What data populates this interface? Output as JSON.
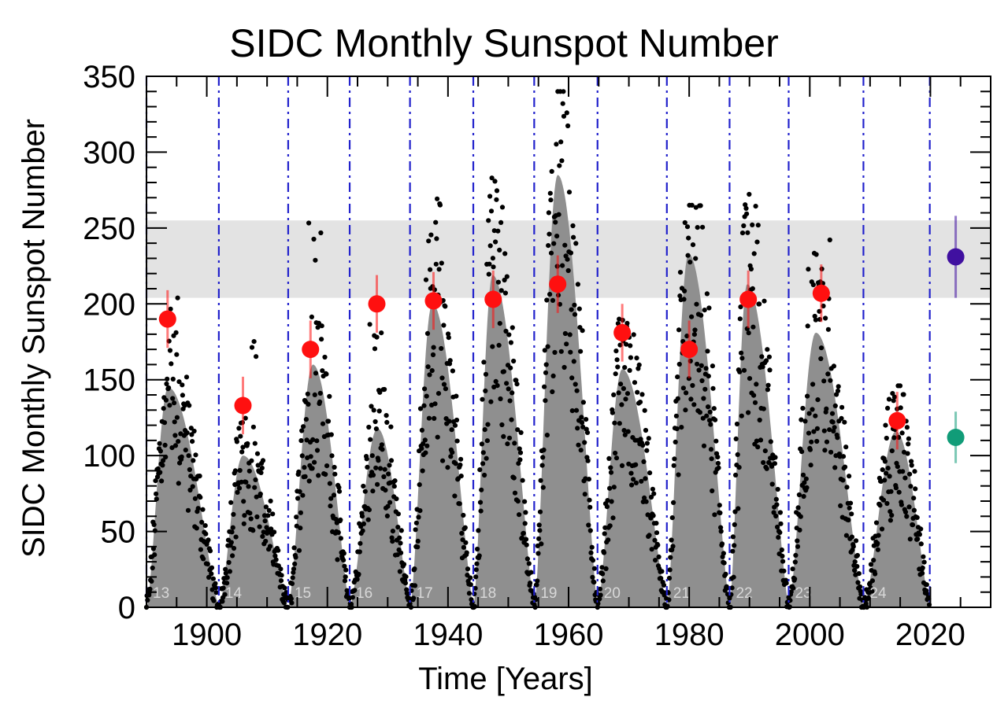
{
  "chart_data": {
    "type": "scatter",
    "title": "SIDC Monthly Sunspot Number",
    "xlabel": "Time [Years]",
    "ylabel": "SIDC Monthly Sunspot Number",
    "xlim": [
      1890,
      2030
    ],
    "ylim": [
      0,
      350
    ],
    "x_ticks": [
      1900,
      1920,
      1940,
      1960,
      1980,
      2000,
      2020
    ],
    "y_ticks": [
      0,
      50,
      100,
      150,
      200,
      250,
      300,
      350
    ],
    "grid": false,
    "shaded_band": {
      "y_from": 204,
      "y_to": 255,
      "color": "#e3e3e3"
    },
    "cycle_boundaries": [
      1890.0,
      1902.0,
      1913.5,
      1923.7,
      1933.7,
      1944.2,
      1954.3,
      1964.8,
      1976.3,
      1986.7,
      1996.5,
      2008.9,
      2019.9
    ],
    "cycles": [
      {
        "label": "13",
        "start": 1890.0,
        "peak": 1893.6,
        "end": 1902.0,
        "smoothed_max": 145,
        "monthly_max": 214
      },
      {
        "label": "14",
        "start": 1902.0,
        "peak": 1906.0,
        "end": 1913.5,
        "smoothed_max": 100,
        "monthly_max": 180
      },
      {
        "label": "15",
        "start": 1913.5,
        "peak": 1917.6,
        "end": 1923.7,
        "smoothed_max": 160,
        "monthly_max": 257
      },
      {
        "label": "16",
        "start": 1923.7,
        "peak": 1928.3,
        "end": 1933.7,
        "smoothed_max": 118,
        "monthly_max": 190
      },
      {
        "label": "17",
        "start": 1933.7,
        "peak": 1937.4,
        "end": 1944.2,
        "smoothed_max": 200,
        "monthly_max": 275
      },
      {
        "label": "18",
        "start": 1944.2,
        "peak": 1947.4,
        "end": 1954.3,
        "smoothed_max": 219,
        "monthly_max": 283
      },
      {
        "label": "19",
        "start": 1954.3,
        "peak": 1958.2,
        "end": 1964.8,
        "smoothed_max": 285,
        "monthly_max": 340
      },
      {
        "label": "20",
        "start": 1964.8,
        "peak": 1968.9,
        "end": 1976.3,
        "smoothed_max": 157,
        "monthly_max": 190
      },
      {
        "label": "21",
        "start": 1976.3,
        "peak": 1979.9,
        "end": 1986.7,
        "smoothed_max": 233,
        "monthly_max": 265
      },
      {
        "label": "22",
        "start": 1986.7,
        "peak": 1989.6,
        "end": 1996.5,
        "smoothed_max": 213,
        "monthly_max": 284
      },
      {
        "label": "23",
        "start": 1996.5,
        "peak": 2001.0,
        "end": 2008.9,
        "smoothed_max": 181,
        "monthly_max": 244
      },
      {
        "label": "24",
        "start": 2008.9,
        "peak": 2014.3,
        "end": 2019.9,
        "smoothed_max": 116,
        "monthly_max": 146
      }
    ],
    "monthly_data_color": "#000000",
    "smoothed_fill_color": "#8f8f8f",
    "boundary_color": "#2222cc",
    "series": [
      {
        "color": "#ff1010",
        "points": [
          {
            "x": 1893.5,
            "y": 190,
            "err": 19
          },
          {
            "x": 1906.0,
            "y": 133,
            "err": 19
          },
          {
            "x": 1917.2,
            "y": 170,
            "err": 19
          },
          {
            "x": 1928.2,
            "y": 200,
            "err": 19
          },
          {
            "x": 1937.6,
            "y": 202,
            "err": 19
          },
          {
            "x": 1947.5,
            "y": 203,
            "err": 19
          },
          {
            "x": 1958.2,
            "y": 213,
            "err": 19
          },
          {
            "x": 1968.9,
            "y": 181,
            "err": 19
          },
          {
            "x": 1980.0,
            "y": 170,
            "err": 19
          },
          {
            "x": 1989.8,
            "y": 203,
            "err": 19
          },
          {
            "x": 2001.9,
            "y": 207,
            "err": 19
          },
          {
            "x": 2014.5,
            "y": 123,
            "err": 19
          }
        ]
      },
      {
        "color": "#4010a0",
        "points": [
          {
            "x": 2024.2,
            "y": 231,
            "err": 27
          }
        ]
      },
      {
        "color": "#119c78",
        "points": [
          {
            "x": 2024.2,
            "y": 112,
            "err": 17
          }
        ]
      }
    ]
  }
}
